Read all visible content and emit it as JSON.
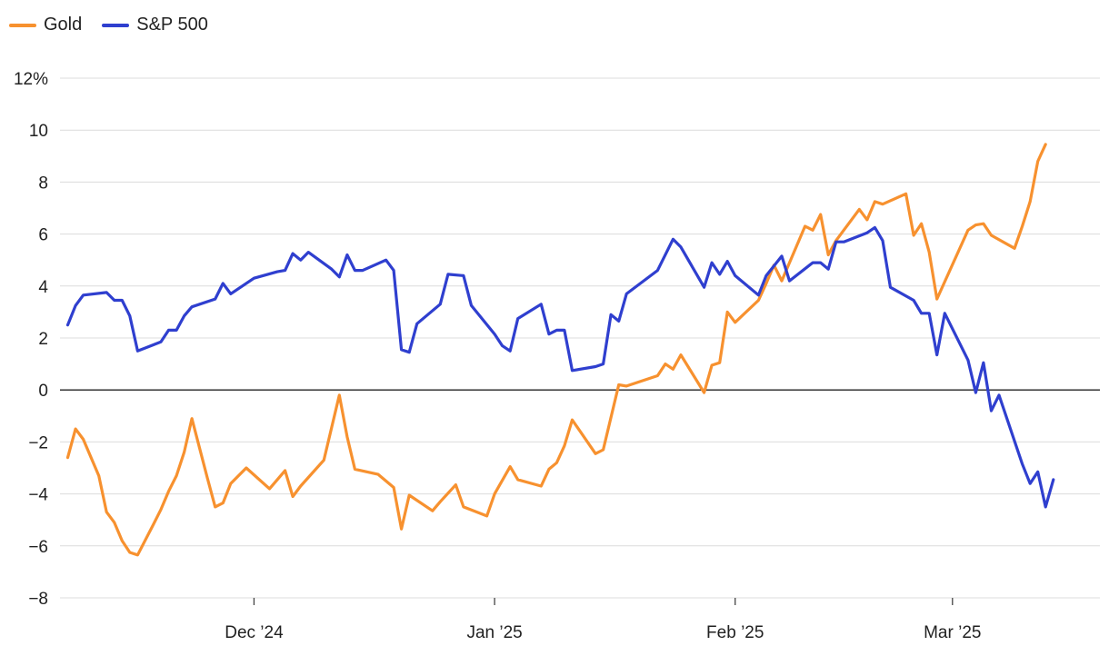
{
  "legend": [
    {
      "label": "Gold",
      "color": "#f7912f"
    },
    {
      "label": "S&P 500",
      "color": "#2f3fcf"
    }
  ],
  "chart_data": {
    "type": "line",
    "title": "",
    "xlabel": "",
    "ylabel": "",
    "y_unit": "%",
    "ylim": [
      -8,
      12
    ],
    "yticks": [
      12,
      10,
      8,
      6,
      4,
      2,
      0,
      -2,
      -4,
      -6,
      -8
    ],
    "ytick_labels": [
      "12%",
      "10",
      "8",
      "6",
      "4",
      "2",
      "0",
      "−2",
      "−4",
      "−6",
      "−8"
    ],
    "x_type": "date",
    "xlim": [
      "2024-11-06",
      "2025-03-20"
    ],
    "xticks": [
      {
        "date": "2024-12-01",
        "label": "Dec ’24"
      },
      {
        "date": "2025-01-01",
        "label": "Jan ’25"
      },
      {
        "date": "2025-02-01",
        "label": "Feb ’25"
      },
      {
        "date": "2025-03-01",
        "label": "Mar ’25"
      }
    ],
    "grid": true,
    "legend_position": "top-left",
    "series": [
      {
        "name": "Gold",
        "color": "#f7912f",
        "points": [
          [
            "2024-11-07",
            -2.6
          ],
          [
            "2024-11-08",
            -1.5
          ],
          [
            "2024-11-09",
            -1.9
          ],
          [
            "2024-11-11",
            -3.3
          ],
          [
            "2024-11-12",
            -4.7
          ],
          [
            "2024-11-13",
            -5.1
          ],
          [
            "2024-11-14",
            -5.8
          ],
          [
            "2024-11-15",
            -6.25
          ],
          [
            "2024-11-16",
            -6.35
          ],
          [
            "2024-11-18",
            -5.2
          ],
          [
            "2024-11-19",
            -4.6
          ],
          [
            "2024-11-20",
            -3.9
          ],
          [
            "2024-11-21",
            -3.3
          ],
          [
            "2024-11-22",
            -2.4
          ],
          [
            "2024-11-23",
            -1.1
          ],
          [
            "2024-11-25",
            -3.4
          ],
          [
            "2024-11-26",
            -4.5
          ],
          [
            "2024-11-27",
            -4.35
          ],
          [
            "2024-11-28",
            -3.6
          ],
          [
            "2024-11-30",
            -3.0
          ],
          [
            "2024-12-03",
            -3.8
          ],
          [
            "2024-12-05",
            -3.1
          ],
          [
            "2024-12-06",
            -4.1
          ],
          [
            "2024-12-07",
            -3.7
          ],
          [
            "2024-12-10",
            -2.7
          ],
          [
            "2024-12-12",
            -0.2
          ],
          [
            "2024-12-13",
            -1.8
          ],
          [
            "2024-12-14",
            -3.05
          ],
          [
            "2024-12-17",
            -3.25
          ],
          [
            "2024-12-19",
            -3.75
          ],
          [
            "2024-12-20",
            -5.35
          ],
          [
            "2024-12-21",
            -4.05
          ],
          [
            "2024-12-24",
            -4.65
          ],
          [
            "2024-12-25",
            -4.3
          ],
          [
            "2024-12-27",
            -3.65
          ],
          [
            "2024-12-28",
            -4.5
          ],
          [
            "2024-12-31",
            -4.85
          ],
          [
            "2025-01-01",
            -4.0
          ],
          [
            "2025-01-03",
            -2.95
          ],
          [
            "2025-01-04",
            -3.45
          ],
          [
            "2025-01-07",
            -3.7
          ],
          [
            "2025-01-08",
            -3.05
          ],
          [
            "2025-01-09",
            -2.8
          ],
          [
            "2025-01-10",
            -2.15
          ],
          [
            "2025-01-11",
            -1.15
          ],
          [
            "2025-01-14",
            -2.45
          ],
          [
            "2025-01-15",
            -2.3
          ],
          [
            "2025-01-17",
            0.2
          ],
          [
            "2025-01-18",
            0.15
          ],
          [
            "2025-01-22",
            0.55
          ],
          [
            "2025-01-23",
            1.0
          ],
          [
            "2025-01-24",
            0.8
          ],
          [
            "2025-01-25",
            1.35
          ],
          [
            "2025-01-28",
            -0.1
          ],
          [
            "2025-01-29",
            0.95
          ],
          [
            "2025-01-30",
            1.05
          ],
          [
            "2025-01-31",
            3.0
          ],
          [
            "2025-02-01",
            2.6
          ],
          [
            "2025-02-04",
            3.45
          ],
          [
            "2025-02-05",
            4.1
          ],
          [
            "2025-02-06",
            4.8
          ],
          [
            "2025-02-07",
            4.2
          ],
          [
            "2025-02-10",
            6.3
          ],
          [
            "2025-02-11",
            6.15
          ],
          [
            "2025-02-12",
            6.75
          ],
          [
            "2025-02-13",
            5.2
          ],
          [
            "2025-02-14",
            5.75
          ],
          [
            "2025-02-17",
            6.95
          ],
          [
            "2025-02-18",
            6.55
          ],
          [
            "2025-02-19",
            7.25
          ],
          [
            "2025-02-20",
            7.15
          ],
          [
            "2025-02-23",
            7.55
          ],
          [
            "2025-02-24",
            5.95
          ],
          [
            "2025-02-25",
            6.4
          ],
          [
            "2025-02-26",
            5.3
          ],
          [
            "2025-02-27",
            3.5
          ],
          [
            "2025-03-03",
            6.15
          ],
          [
            "2025-03-04",
            6.35
          ],
          [
            "2025-03-05",
            6.4
          ],
          [
            "2025-03-06",
            5.95
          ],
          [
            "2025-03-09",
            5.45
          ],
          [
            "2025-03-10",
            6.3
          ],
          [
            "2025-03-11",
            7.25
          ],
          [
            "2025-03-12",
            8.8
          ],
          [
            "2025-03-13",
            9.45
          ]
        ]
      },
      {
        "name": "S&P 500",
        "color": "#2f3fcf",
        "points": [
          [
            "2024-11-07",
            2.5
          ],
          [
            "2024-11-08",
            3.25
          ],
          [
            "2024-11-09",
            3.65
          ],
          [
            "2024-11-12",
            3.75
          ],
          [
            "2024-11-13",
            3.45
          ],
          [
            "2024-11-14",
            3.45
          ],
          [
            "2024-11-15",
            2.85
          ],
          [
            "2024-11-16",
            1.5
          ],
          [
            "2024-11-19",
            1.85
          ],
          [
            "2024-11-20",
            2.3
          ],
          [
            "2024-11-21",
            2.3
          ],
          [
            "2024-11-22",
            2.85
          ],
          [
            "2024-11-23",
            3.2
          ],
          [
            "2024-11-26",
            3.5
          ],
          [
            "2024-11-27",
            4.1
          ],
          [
            "2024-11-28",
            3.7
          ],
          [
            "2024-12-01",
            4.3
          ],
          [
            "2024-12-04",
            4.55
          ],
          [
            "2024-12-05",
            4.6
          ],
          [
            "2024-12-06",
            5.25
          ],
          [
            "2024-12-07",
            5.0
          ],
          [
            "2024-12-08",
            5.3
          ],
          [
            "2024-12-11",
            4.65
          ],
          [
            "2024-12-12",
            4.35
          ],
          [
            "2024-12-13",
            5.2
          ],
          [
            "2024-12-14",
            4.6
          ],
          [
            "2024-12-15",
            4.6
          ],
          [
            "2024-12-18",
            5.0
          ],
          [
            "2024-12-19",
            4.6
          ],
          [
            "2024-12-20",
            1.55
          ],
          [
            "2024-12-21",
            1.45
          ],
          [
            "2024-12-22",
            2.55
          ],
          [
            "2024-12-25",
            3.3
          ],
          [
            "2024-12-26",
            4.45
          ],
          [
            "2024-12-28",
            4.4
          ],
          [
            "2024-12-29",
            3.25
          ],
          [
            "2025-01-01",
            2.15
          ],
          [
            "2025-01-02",
            1.7
          ],
          [
            "2025-01-03",
            1.5
          ],
          [
            "2025-01-04",
            2.75
          ],
          [
            "2025-01-07",
            3.3
          ],
          [
            "2025-01-08",
            2.15
          ],
          [
            "2025-01-09",
            2.3
          ],
          [
            "2025-01-10",
            2.3
          ],
          [
            "2025-01-11",
            0.75
          ],
          [
            "2025-01-14",
            0.9
          ],
          [
            "2025-01-15",
            1.0
          ],
          [
            "2025-01-16",
            2.9
          ],
          [
            "2025-01-17",
            2.65
          ],
          [
            "2025-01-18",
            3.7
          ],
          [
            "2025-01-22",
            4.6
          ],
          [
            "2025-01-24",
            5.8
          ],
          [
            "2025-01-25",
            5.5
          ],
          [
            "2025-01-28",
            3.95
          ],
          [
            "2025-01-29",
            4.9
          ],
          [
            "2025-01-30",
            4.45
          ],
          [
            "2025-01-31",
            4.95
          ],
          [
            "2025-02-01",
            4.4
          ],
          [
            "2025-02-04",
            3.65
          ],
          [
            "2025-02-05",
            4.4
          ],
          [
            "2025-02-07",
            5.15
          ],
          [
            "2025-02-08",
            4.2
          ],
          [
            "2025-02-11",
            4.9
          ],
          [
            "2025-02-12",
            4.9
          ],
          [
            "2025-02-13",
            4.65
          ],
          [
            "2025-02-14",
            5.7
          ],
          [
            "2025-02-15",
            5.7
          ],
          [
            "2025-02-18",
            6.05
          ],
          [
            "2025-02-19",
            6.25
          ],
          [
            "2025-02-20",
            5.75
          ],
          [
            "2025-02-21",
            3.95
          ],
          [
            "2025-02-24",
            3.45
          ],
          [
            "2025-02-25",
            2.95
          ],
          [
            "2025-02-26",
            2.95
          ],
          [
            "2025-02-27",
            1.35
          ],
          [
            "2025-02-28",
            2.95
          ],
          [
            "2025-03-03",
            1.15
          ],
          [
            "2025-03-04",
            -0.1
          ],
          [
            "2025-03-05",
            1.05
          ],
          [
            "2025-03-06",
            -0.8
          ],
          [
            "2025-03-07",
            -0.2
          ],
          [
            "2025-03-10",
            -2.85
          ],
          [
            "2025-03-11",
            -3.6
          ],
          [
            "2025-03-12",
            -3.15
          ],
          [
            "2025-03-13",
            -4.5
          ],
          [
            "2025-03-14",
            -3.45
          ]
        ]
      }
    ]
  }
}
